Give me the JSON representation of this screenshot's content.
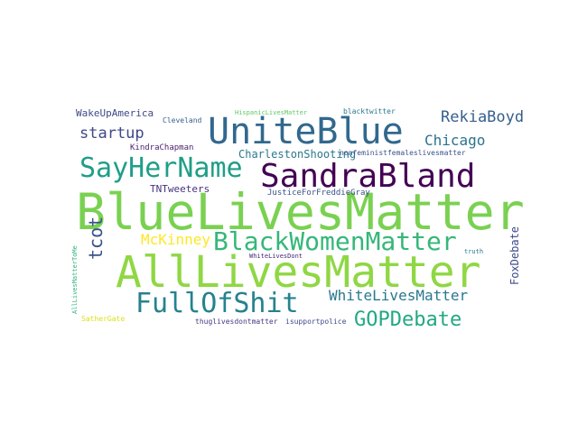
{
  "word_cloud": {
    "words": [
      {
        "text": "BlueLivesMatter",
        "color": "#7ad151"
      },
      {
        "text": "AllLivesMatter",
        "color": "#8fd744"
      },
      {
        "text": "UniteBlue",
        "color": "#31688e"
      },
      {
        "text": "SandraBland",
        "color": "#440154"
      },
      {
        "text": "SayHerName",
        "color": "#1f9e89"
      },
      {
        "text": "BlackWomenMatter",
        "color": "#35b779"
      },
      {
        "text": "FullOfShit",
        "color": "#26828e"
      },
      {
        "text": "GOPDebate",
        "color": "#22a884"
      },
      {
        "text": "WhiteLivesMatter",
        "color": "#2a788e"
      },
      {
        "text": "RekiaBoyd",
        "color": "#355f8d"
      },
      {
        "text": "Chicago",
        "color": "#2c728e"
      },
      {
        "text": "startup",
        "color": "#3e4989"
      },
      {
        "text": "McKinney",
        "color": "#fde725"
      },
      {
        "text": "tcot",
        "color": "#3b528b"
      },
      {
        "text": "WakeUpAmerica",
        "color": "#3e4a89"
      },
      {
        "text": "CharlestonShooting",
        "color": "#2a788e"
      },
      {
        "text": "TNTweeters",
        "color": "#46337e"
      },
      {
        "text": "KindraChapman",
        "color": "#481f70"
      },
      {
        "text": "JusticeForFreddieGray",
        "color": "#3b528b"
      },
      {
        "text": "nonfeministfemaleslivesmatter",
        "color": "#3b528b"
      },
      {
        "text": "FoxDebate",
        "color": "#3e4989"
      },
      {
        "text": "HispanicLivesMatter",
        "color": "#5ec962"
      },
      {
        "text": "blacktwitter",
        "color": "#2a788e"
      },
      {
        "text": "Cleveland",
        "color": "#355f8d"
      },
      {
        "text": "thuglivesdontmatter",
        "color": "#443983"
      },
      {
        "text": "isupportpolice",
        "color": "#3e4a89"
      },
      {
        "text": "WhiteLivesDont",
        "color": "#482878"
      },
      {
        "text": "SatherGate",
        "color": "#d8e219"
      },
      {
        "text": "AllLivesMatterToMe",
        "color": "#2fb47c"
      },
      {
        "text": "truth",
        "color": "#2a788e"
      },
      {
        "text": "WakeUpAmerica",
        "color": "#3e4a89"
      }
    ]
  }
}
